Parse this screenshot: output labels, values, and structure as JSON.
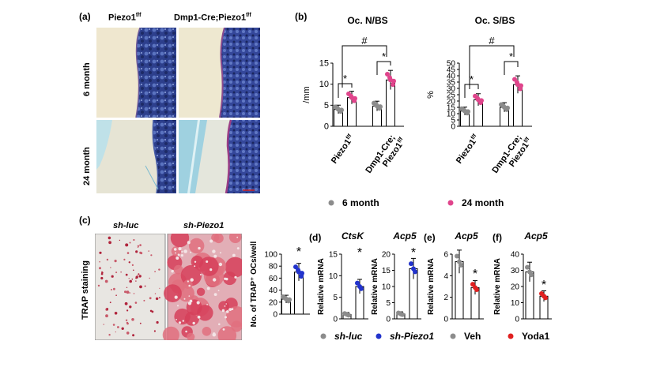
{
  "panels": {
    "a": {
      "label": "(a)",
      "col1": "Piezo1",
      "col1_sup": "f/f",
      "col2": "Dmp1-Cre;Piezo1",
      "col2_sup": "f/f",
      "row1": "6 month",
      "row2": "24 month"
    },
    "b": {
      "label": "(b)"
    },
    "c": {
      "label": "(c)",
      "col1": "sh-luc",
      "col2": "sh-Piezo1",
      "row": "TRAP staining"
    },
    "d": {
      "label": "(d)"
    },
    "e": {
      "label": "(e)"
    },
    "f": {
      "label": "(f)"
    }
  },
  "legends": {
    "b": {
      "item1": "6 month",
      "item2": "24 month",
      "color1": "#8c8c8c",
      "color2": "#e0458c"
    },
    "d": {
      "item1": "sh-luc",
      "item2": "sh-Piezo1",
      "color1": "#8c8c8c",
      "color2": "#2233cc"
    },
    "e": {
      "item1": "Veh",
      "color1": "#8c8c8c"
    },
    "f": {
      "item1": "Yoda1",
      "color1": "#e02020"
    }
  },
  "chart_data": [
    {
      "id": "b1",
      "type": "bar",
      "title": "Oc. N/BS",
      "ylabel": "/mm",
      "ylim": [
        0,
        15
      ],
      "yticks": [
        0,
        5,
        10,
        15
      ],
      "groups": [
        {
          "label": "Piezo1",
          "sup": "f/f"
        },
        {
          "label": "Dmp1-Cre;",
          "label2": "Piezo1",
          "sup": "f/f"
        }
      ],
      "series": [
        {
          "name": "6 month",
          "values": [
            4.0,
            4.8
          ]
        },
        {
          "name": "24 month",
          "values": [
            6.8,
            11.0
          ]
        }
      ],
      "annotations": [
        "*",
        "*",
        "#"
      ]
    },
    {
      "id": "b2",
      "type": "bar",
      "title": "Oc. S/BS",
      "ylabel": "%",
      "ylim": [
        0,
        50
      ],
      "yticks": [
        0,
        5,
        10,
        15,
        20,
        25,
        30,
        35,
        40,
        45,
        50
      ],
      "groups": [
        {
          "label": "Piezo1",
          "sup": "f/f"
        },
        {
          "label": "Dmp1-Cre;",
          "label2": "Piezo1",
          "sup": "f/f"
        }
      ],
      "series": [
        {
          "name": "6 month",
          "values": [
            12,
            15
          ]
        },
        {
          "name": "24 month",
          "values": [
            21,
            33
          ]
        }
      ],
      "annotations": [
        "*",
        "*",
        "#"
      ]
    },
    {
      "id": "c1",
      "type": "bar",
      "ylabel": "No. of TRAP⁺ OCs/well",
      "ylim": [
        0,
        100
      ],
      "yticks": [
        0,
        20,
        40,
        60,
        80,
        100
      ],
      "series": [
        {
          "name": "sh-luc",
          "values": [
            25
          ]
        },
        {
          "name": "sh-Piezo1",
          "values": [
            70
          ]
        }
      ],
      "annotations": [
        "*"
      ]
    },
    {
      "id": "d1",
      "type": "bar",
      "title": "CtsK",
      "ylabel": "Relative mRNA",
      "ylim": [
        0,
        15
      ],
      "yticks": [
        0,
        5,
        10,
        15
      ],
      "series": [
        {
          "name": "sh-luc",
          "values": [
            1.0
          ]
        },
        {
          "name": "sh-Piezo1",
          "values": [
            7.5
          ]
        }
      ],
      "annotations": [
        "*"
      ]
    },
    {
      "id": "d2",
      "type": "bar",
      "title": "Acp5",
      "ylabel": "Relative mRNA",
      "ylim": [
        0,
        20
      ],
      "yticks": [
        0,
        5,
        10,
        15,
        20
      ],
      "series": [
        {
          "name": "sh-luc",
          "values": [
            1.5
          ]
        },
        {
          "name": "sh-Piezo1",
          "values": [
            15.5
          ]
        }
      ],
      "annotations": [
        "*"
      ]
    },
    {
      "id": "e1",
      "type": "bar",
      "title": "Acp5",
      "ylabel": "Relative mRNA",
      "ylim": [
        0,
        6
      ],
      "yticks": [
        0,
        2,
        4,
        6
      ],
      "series": [
        {
          "name": "Veh",
          "values": [
            5.3
          ]
        },
        {
          "name": "Yoda1",
          "values": [
            2.9
          ]
        }
      ],
      "annotations": [
        "*"
      ]
    },
    {
      "id": "f1",
      "type": "bar",
      "title": "Acp5",
      "ylabel": "Relative mRNA",
      "ylim": [
        0,
        40
      ],
      "yticks": [
        0,
        10,
        20,
        30,
        40
      ],
      "series": [
        {
          "name": "Veh",
          "values": [
            29
          ]
        },
        {
          "name": "Yoda1",
          "values": [
            14
          ]
        }
      ],
      "annotations": [
        "*"
      ]
    }
  ]
}
